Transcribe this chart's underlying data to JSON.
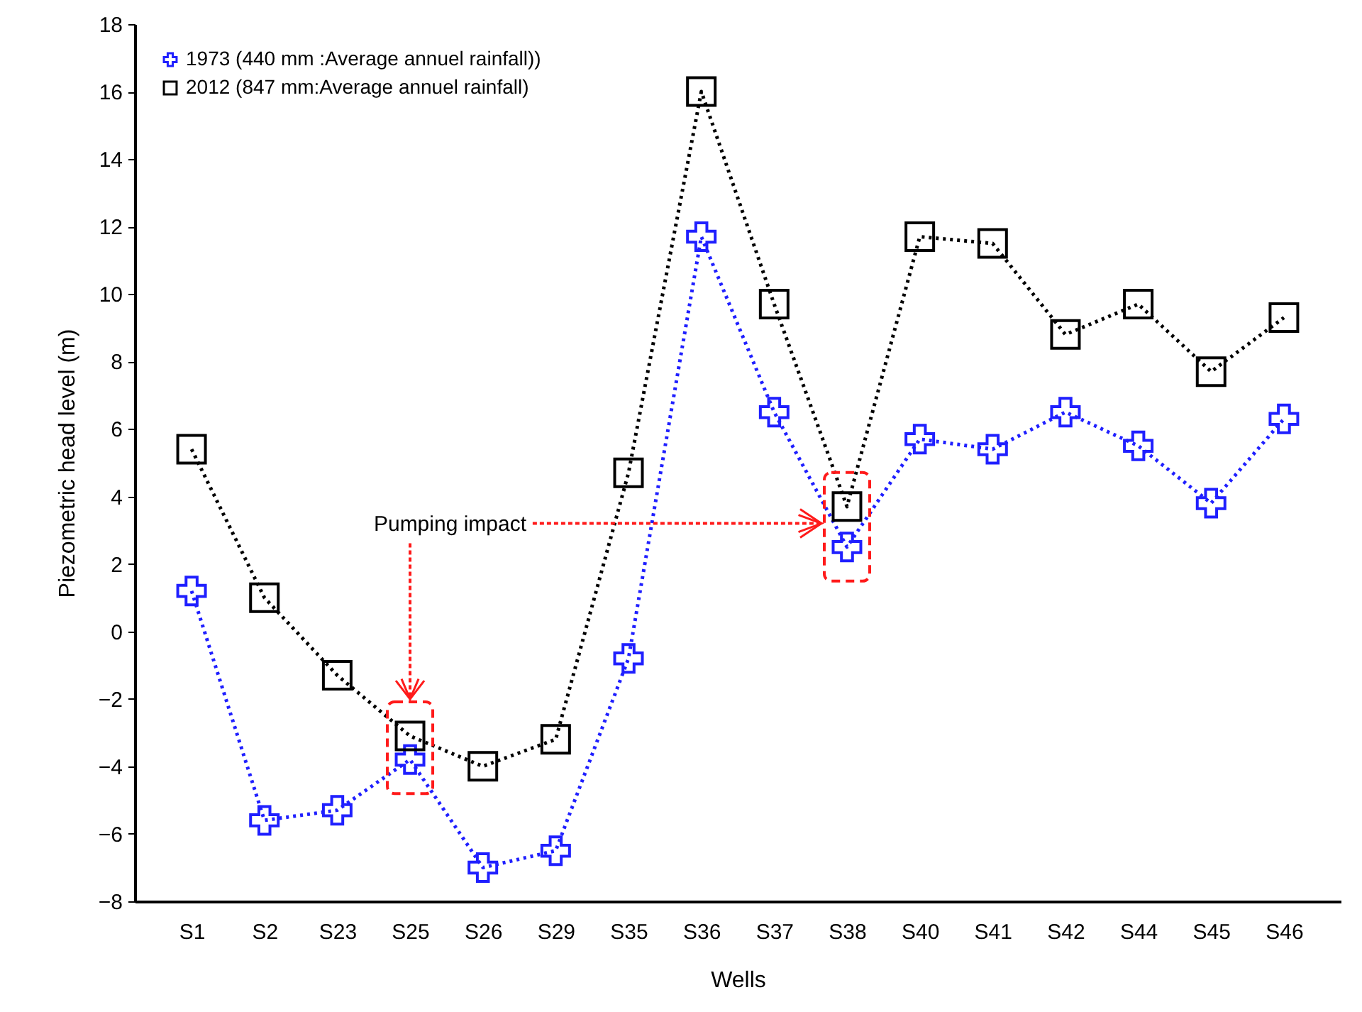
{
  "chart_data": {
    "type": "line",
    "xlabel": "Wells",
    "ylabel": "Piezometric head level (m)",
    "categories": [
      "S1",
      "S2",
      "S23",
      "S25",
      "S26",
      "S29",
      "S35",
      "S36",
      "S37",
      "S38",
      "S40",
      "S41",
      "S42",
      "S44",
      "S45",
      "S46"
    ],
    "series": [
      {
        "name": "1973 (440 mm :Average annuel rainfall))",
        "color": "#1f1fff",
        "marker": "cross",
        "values": [
          1.2,
          -5.6,
          -5.3,
          -3.8,
          -7.0,
          -6.5,
          -0.8,
          11.7,
          6.5,
          2.5,
          5.7,
          5.4,
          6.5,
          5.5,
          3.8,
          6.3
        ]
      },
      {
        "name": "2012 (847 mm:Average annuel rainfall)",
        "color": "#000000",
        "marker": "square",
        "values": [
          5.4,
          1.0,
          -1.3,
          -3.1,
          -4.0,
          -3.2,
          4.7,
          16.0,
          9.7,
          3.7,
          11.7,
          11.5,
          8.8,
          9.7,
          7.7,
          9.3
        ]
      }
    ],
    "ylim": [
      -8,
      18
    ],
    "yticks": [
      -8,
      -6,
      -4,
      -2,
      0,
      2,
      4,
      6,
      8,
      10,
      12,
      14,
      16,
      18
    ],
    "line_style": "dotted",
    "legend": "top left",
    "grid": false,
    "annotations": [
      "Pumping impact"
    ]
  }
}
